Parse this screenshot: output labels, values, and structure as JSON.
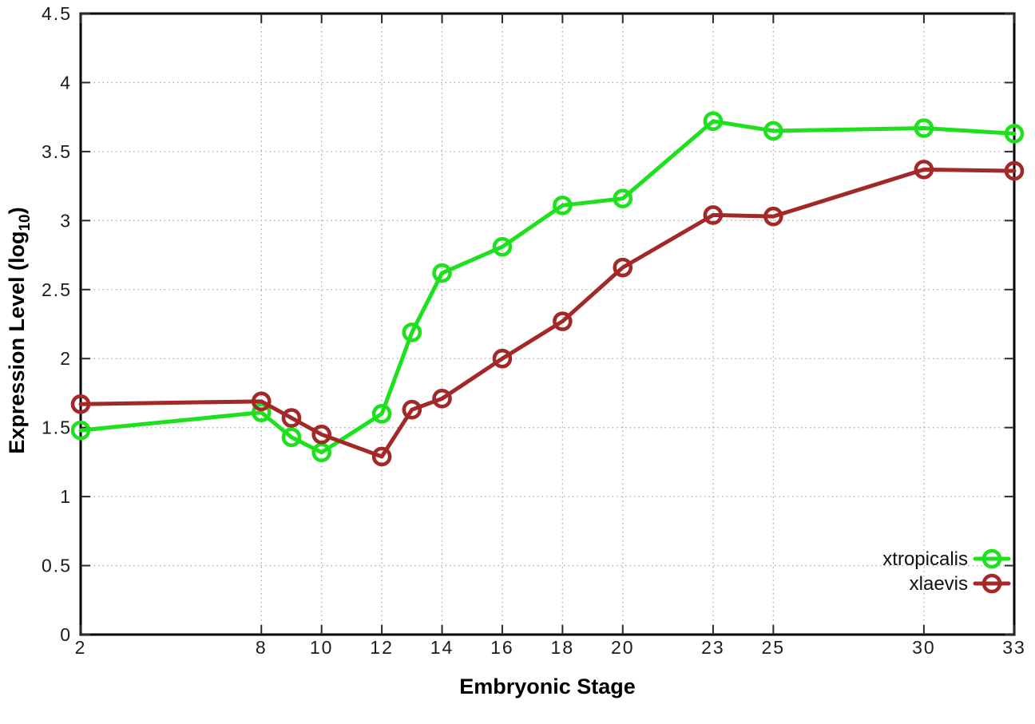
{
  "chart_data": {
    "type": "line",
    "title": "",
    "xlabel": "Embryonic Stage",
    "ylabel": "Expression Level (log10)",
    "ylabel_parts": {
      "pre": "Expression Level (log",
      "sub": "10",
      "post": ")"
    },
    "x": [
      2,
      8,
      9,
      10,
      12,
      13,
      14,
      16,
      18,
      20,
      23,
      25,
      30,
      33
    ],
    "series": [
      {
        "name": "xtropicalis",
        "color": "#1ee11e",
        "marker": "open-circle",
        "values": [
          1.48,
          1.61,
          1.43,
          1.32,
          1.6,
          2.19,
          2.62,
          2.81,
          3.11,
          3.16,
          3.72,
          3.65,
          3.67,
          3.63
        ]
      },
      {
        "name": "xlaevis",
        "color": "#a32828",
        "marker": "open-circle",
        "values": [
          1.67,
          1.69,
          1.57,
          1.45,
          1.29,
          1.63,
          1.71,
          2.0,
          2.27,
          2.66,
          3.04,
          3.03,
          3.37,
          3.36
        ]
      }
    ],
    "xlim": [
      2,
      33
    ],
    "ylim": [
      0,
      4.5
    ],
    "xticks": {
      "values": [
        2,
        8,
        10,
        12,
        14,
        16,
        18,
        20,
        23,
        25,
        30,
        33
      ],
      "labels": [
        "2",
        "8",
        "10",
        "12",
        "14",
        "16",
        "18",
        "20",
        "23",
        "25",
        "30",
        "33"
      ]
    },
    "yticks": {
      "values": [
        0,
        0.5,
        1,
        1.5,
        2,
        2.5,
        3,
        3.5,
        4,
        4.5
      ],
      "labels": [
        "0",
        "0.5",
        "1",
        "1.5",
        "2",
        "2.5",
        "3",
        "3.5",
        "4",
        "4.5"
      ]
    },
    "grid": true,
    "legend_position": "bottom-right",
    "legend": [
      "xtropicalis",
      "xlaevis"
    ]
  },
  "colors": {
    "background": "#ffffff",
    "axis_border": "#000000",
    "tick_mark": "#2a2a2a",
    "grid": "#ababab",
    "tick_label": "#1c1c1c"
  }
}
